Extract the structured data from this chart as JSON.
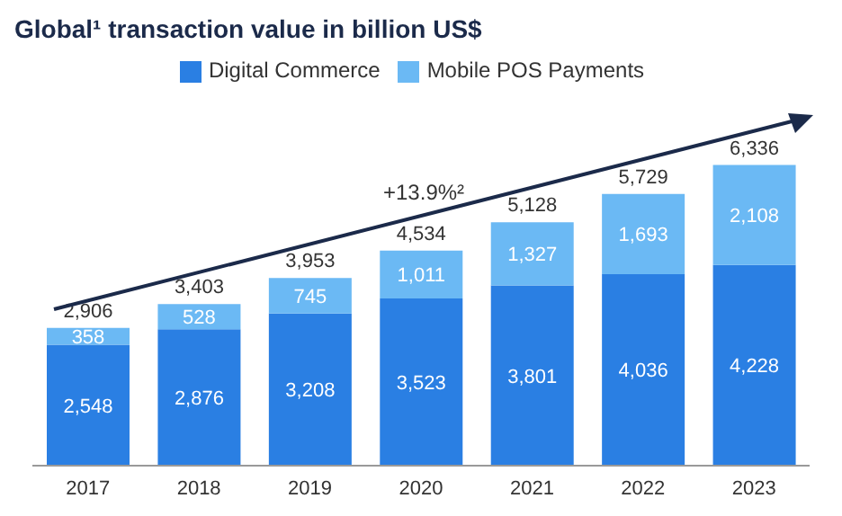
{
  "chart_data": {
    "type": "bar",
    "title": "Global¹ transaction value in billion US$",
    "categories": [
      "2017",
      "2018",
      "2019",
      "2020",
      "2021",
      "2022",
      "2023"
    ],
    "series": [
      {
        "name": "Digital Commerce",
        "color": "#2a7fe3",
        "values": [
          2548,
          2876,
          3208,
          3523,
          3801,
          4036,
          4228
        ],
        "value_labels": [
          "2,548",
          "2,876",
          "3,208",
          "3,523",
          "3,801",
          "4,036",
          "4,228"
        ]
      },
      {
        "name": "Mobile POS Payments",
        "color": "#6bb9f4",
        "values": [
          358,
          528,
          745,
          1011,
          1327,
          1693,
          2108
        ],
        "value_labels": [
          "358",
          "528",
          "745",
          "1,011",
          "1,327",
          "1,693",
          "2,108"
        ]
      }
    ],
    "stacked": true,
    "totals": [
      "2,906",
      "3,403",
      "3,953",
      "4,534",
      "5,128",
      "5,729",
      "6,336"
    ],
    "legend": "top",
    "annotations": [
      "+13.9%²"
    ]
  }
}
